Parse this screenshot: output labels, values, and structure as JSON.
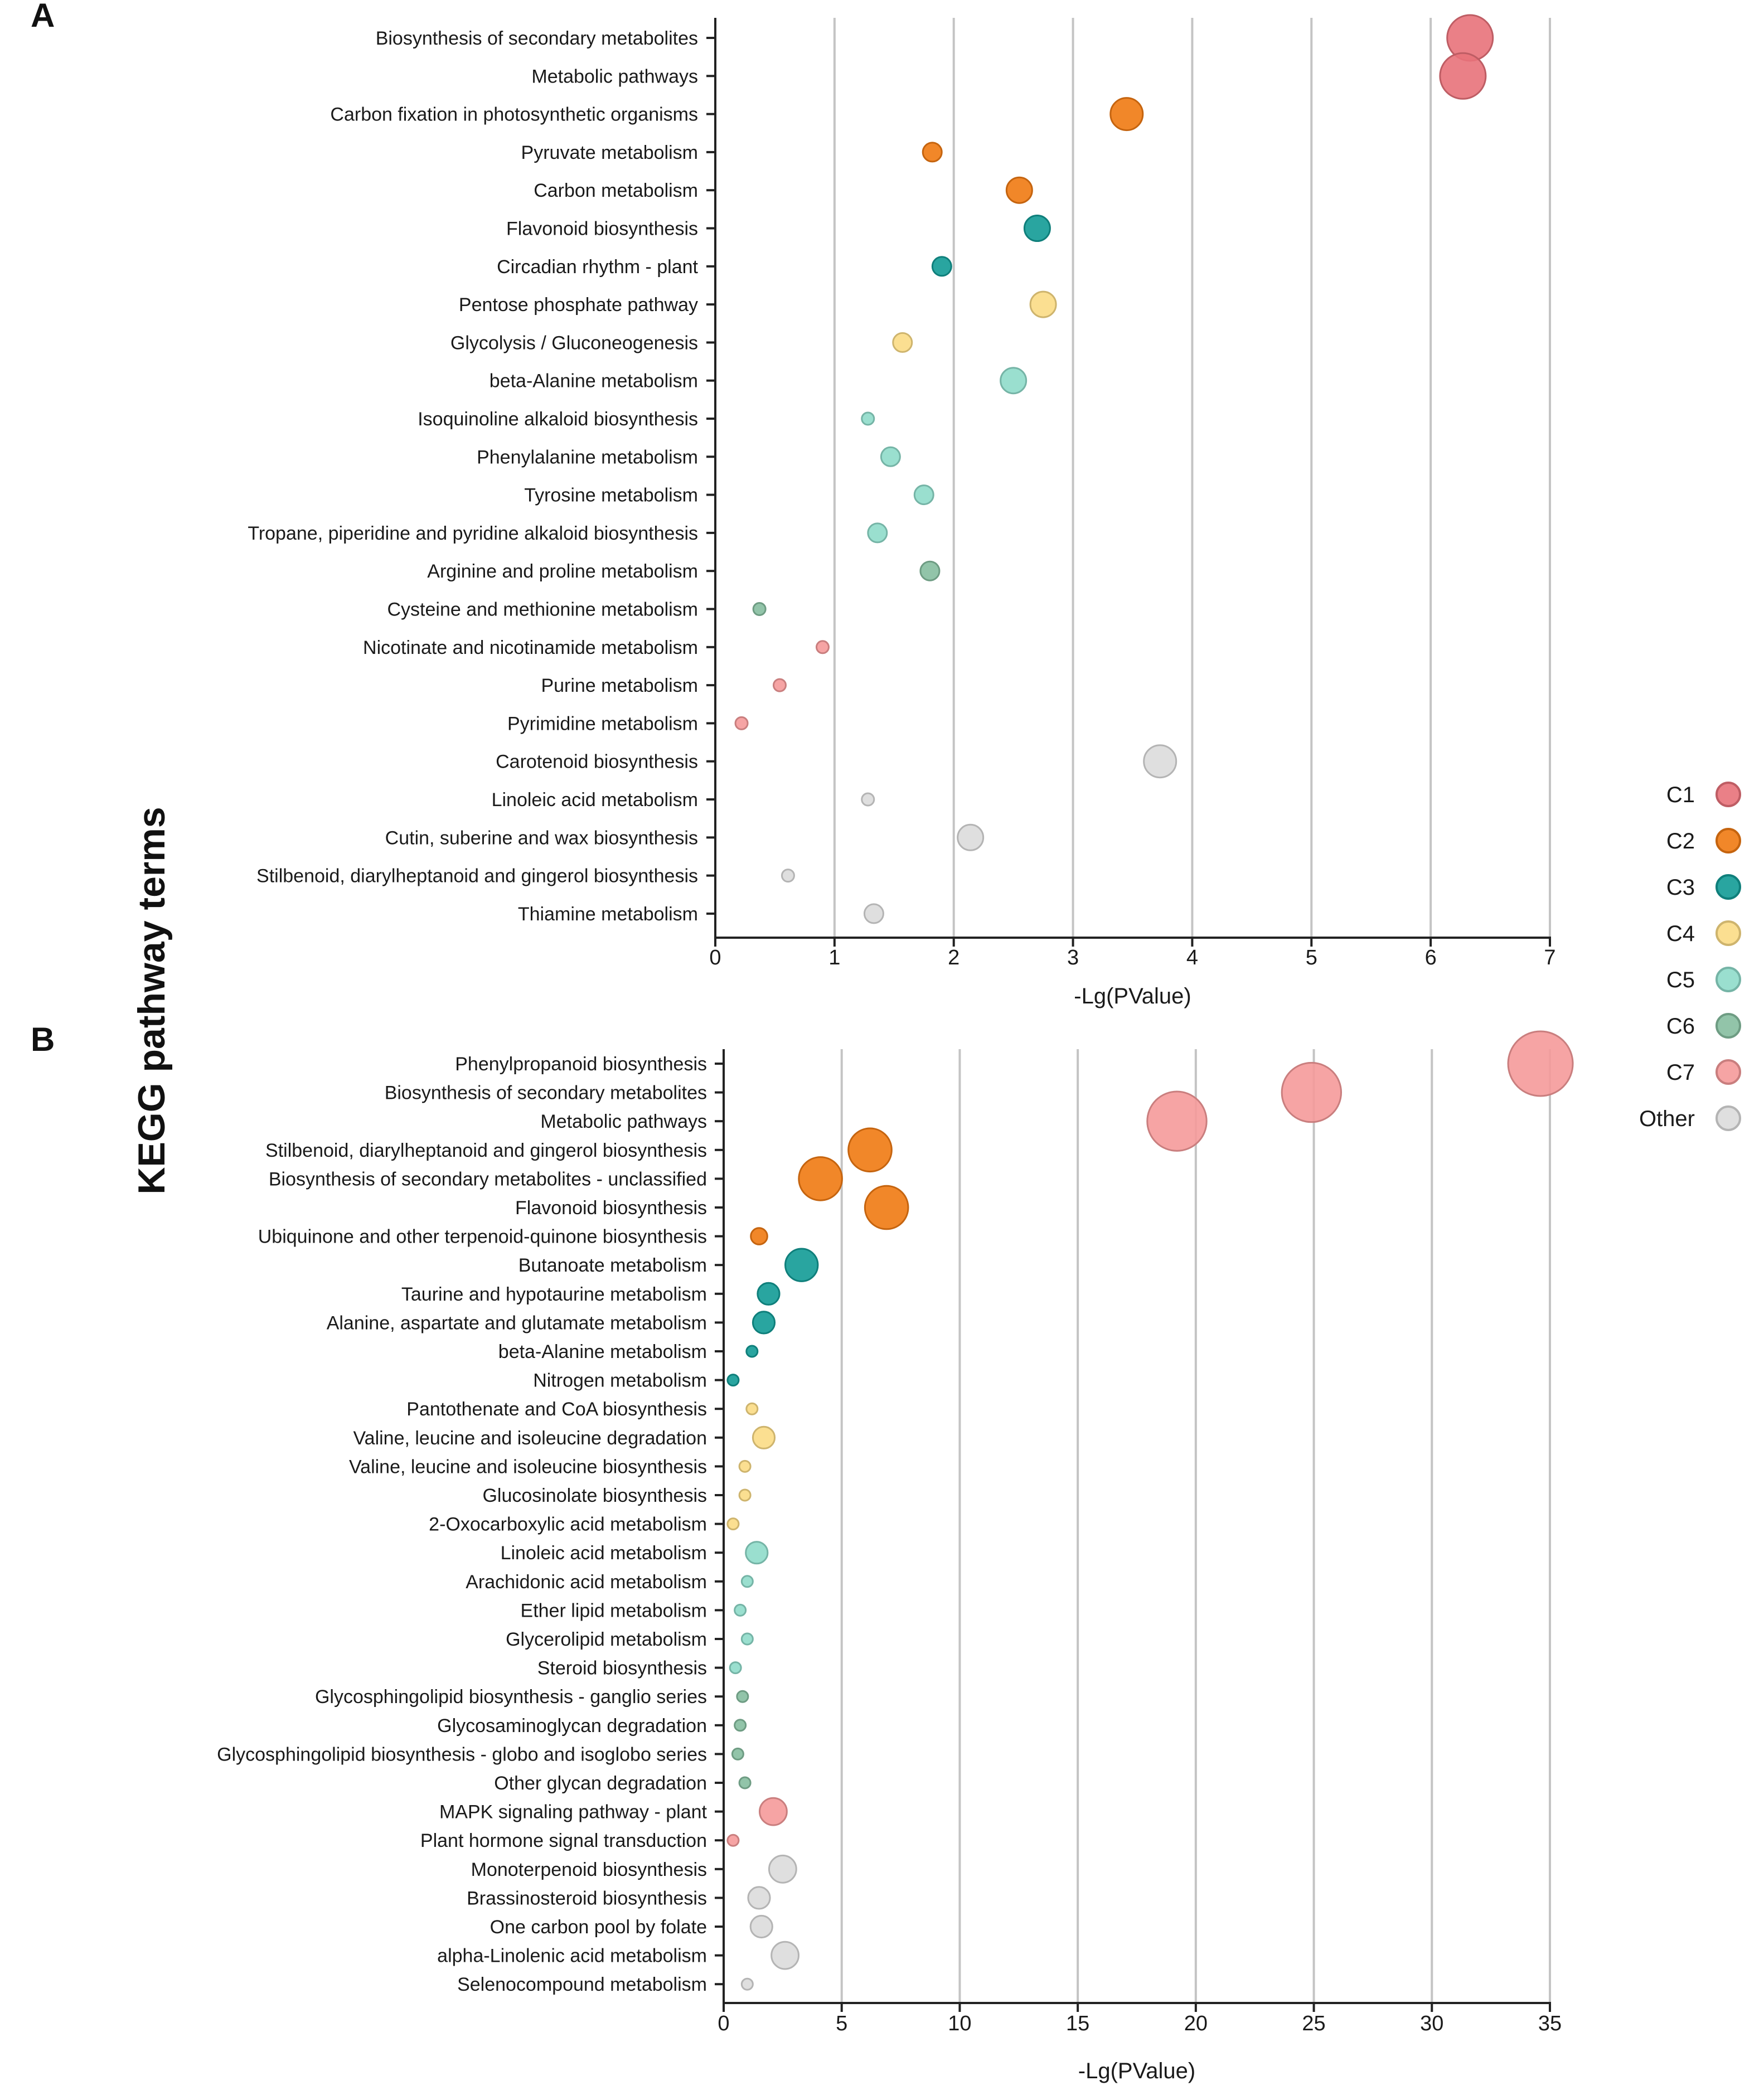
{
  "y_axis_title": "KEGG pathway terms",
  "legend": {
    "entries": [
      {
        "key": "C1",
        "label": "C1",
        "color": "#e8727a"
      },
      {
        "key": "C2",
        "label": "C2",
        "color": "#f07a12"
      },
      {
        "key": "C3",
        "label": "C3",
        "color": "#129b96"
      },
      {
        "key": "C4",
        "label": "C4",
        "color": "#fbdc85"
      },
      {
        "key": "C5",
        "label": "C5",
        "color": "#8fdcca"
      },
      {
        "key": "C6",
        "label": "C6",
        "color": "#86bea0"
      },
      {
        "key": "C7",
        "label": "C7",
        "color": "#f59a9a"
      },
      {
        "key": "Other",
        "label": "Other",
        "color": "#dcdcdc"
      }
    ]
  },
  "chart_data": [
    {
      "panel_label": "A",
      "type": "scatter",
      "xlabel": "-Lg(PValue)",
      "xlim": [
        0,
        7
      ],
      "xticks": [
        "0",
        "1",
        "2",
        "3",
        "4",
        "5",
        "6",
        "7"
      ],
      "grid": true,
      "points": [
        {
          "term": "Biosynthesis of secondary metabolites",
          "x": 6.33,
          "group": "C1",
          "size": 6
        },
        {
          "term": "Metabolic pathways",
          "x": 6.27,
          "group": "C1",
          "size": 6
        },
        {
          "term": "Carbon fixation in photosynthetic organisms",
          "x": 3.45,
          "group": "C2",
          "size": 4
        },
        {
          "term": "Pyruvate metabolism",
          "x": 1.82,
          "group": "C2",
          "size": 2
        },
        {
          "term": "Carbon metabolism",
          "x": 2.55,
          "group": "C2",
          "size": 3
        },
        {
          "term": "Flavonoid biosynthesis",
          "x": 2.7,
          "group": "C3",
          "size": 3
        },
        {
          "term": "Circadian rhythm - plant",
          "x": 1.9,
          "group": "C3",
          "size": 2
        },
        {
          "term": "Pentose phosphate pathway",
          "x": 2.75,
          "group": "C4",
          "size": 3
        },
        {
          "term": "Glycolysis / Gluconeogenesis",
          "x": 1.57,
          "group": "C4",
          "size": 2
        },
        {
          "term": "beta-Alanine metabolism",
          "x": 2.5,
          "group": "C5",
          "size": 3
        },
        {
          "term": "Isoquinoline alkaloid biosynthesis",
          "x": 1.28,
          "group": "C5",
          "size": 1
        },
        {
          "term": "Phenylalanine metabolism",
          "x": 1.47,
          "group": "C5",
          "size": 2
        },
        {
          "term": "Tyrosine metabolism",
          "x": 1.75,
          "group": "C5",
          "size": 2
        },
        {
          "term": "Tropane, piperidine and pyridine alkaloid biosynthesis",
          "x": 1.36,
          "group": "C5",
          "size": 2
        },
        {
          "term": "Arginine and proline metabolism",
          "x": 1.8,
          "group": "C6",
          "size": 2
        },
        {
          "term": "Cysteine and methionine metabolism",
          "x": 0.37,
          "group": "C6",
          "size": 1
        },
        {
          "term": "Nicotinate and nicotinamide metabolism",
          "x": 0.9,
          "group": "C7",
          "size": 1
        },
        {
          "term": "Purine metabolism",
          "x": 0.54,
          "group": "C7",
          "size": 1
        },
        {
          "term": "Pyrimidine metabolism",
          "x": 0.22,
          "group": "C7",
          "size": 1
        },
        {
          "term": "Carotenoid biosynthesis",
          "x": 3.73,
          "group": "Other",
          "size": 4
        },
        {
          "term": "Linoleic acid metabolism",
          "x": 1.28,
          "group": "Other",
          "size": 1
        },
        {
          "term": "Cutin, suberine and wax biosynthesis",
          "x": 2.14,
          "group": "Other",
          "size": 3
        },
        {
          "term": "Stilbenoid, diarylheptanoid and gingerol biosynthesis",
          "x": 0.61,
          "group": "Other",
          "size": 1
        },
        {
          "term": "Thiamine metabolism",
          "x": 1.33,
          "group": "Other",
          "size": 2
        }
      ]
    },
    {
      "panel_label": "B",
      "type": "scatter",
      "xlabel": "-Lg(PValue)",
      "xlim": [
        0,
        35
      ],
      "xticks": [
        "0",
        "5",
        "10",
        "15",
        "20",
        "25",
        "30",
        "35"
      ],
      "grid": true,
      "points": [
        {
          "term": "Phenylpropanoid biosynthesis",
          "x": 34.6,
          "group": "C7",
          "size": 11
        },
        {
          "term": "Biosynthesis of secondary metabolites",
          "x": 24.9,
          "group": "C7",
          "size": 10
        },
        {
          "term": "Metabolic pathways",
          "x": 19.2,
          "group": "C7",
          "size": 10
        },
        {
          "term": "Stilbenoid, diarylheptanoid and gingerol biosynthesis",
          "x": 6.2,
          "group": "C2",
          "size": 7
        },
        {
          "term": "Biosynthesis of secondary metabolites - unclassified",
          "x": 4.1,
          "group": "C2",
          "size": 7
        },
        {
          "term": "Flavonoid biosynthesis",
          "x": 6.9,
          "group": "C2",
          "size": 7
        },
        {
          "term": "Ubiquinone and other terpenoid-quinone biosynthesis",
          "x": 1.5,
          "group": "C2",
          "size": 2
        },
        {
          "term": "Butanoate metabolism",
          "x": 3.3,
          "group": "C3",
          "size": 5
        },
        {
          "term": "Taurine and hypotaurine metabolism",
          "x": 1.9,
          "group": "C3",
          "size": 3
        },
        {
          "term": "Alanine, aspartate and glutamate metabolism",
          "x": 1.7,
          "group": "C3",
          "size": 3
        },
        {
          "term": "beta-Alanine metabolism",
          "x": 1.2,
          "group": "C3",
          "size": 1
        },
        {
          "term": "Nitrogen metabolism",
          "x": 0.4,
          "group": "C3",
          "size": 1
        },
        {
          "term": "Pantothenate and CoA biosynthesis",
          "x": 1.2,
          "group": "C4",
          "size": 1
        },
        {
          "term": "Valine, leucine and isoleucine degradation",
          "x": 1.7,
          "group": "C4",
          "size": 3
        },
        {
          "term": "Valine, leucine and isoleucine biosynthesis",
          "x": 0.9,
          "group": "C4",
          "size": 1
        },
        {
          "term": "Glucosinolate biosynthesis",
          "x": 0.9,
          "group": "C4",
          "size": 1
        },
        {
          "term": "2-Oxocarboxylic acid metabolism",
          "x": 0.4,
          "group": "C4",
          "size": 1
        },
        {
          "term": "Linoleic acid metabolism",
          "x": 1.4,
          "group": "C5",
          "size": 3
        },
        {
          "term": "Arachidonic acid metabolism",
          "x": 1.0,
          "group": "C5",
          "size": 1
        },
        {
          "term": "Ether lipid metabolism",
          "x": 0.7,
          "group": "C5",
          "size": 1
        },
        {
          "term": "Glycerolipid metabolism",
          "x": 1.0,
          "group": "C5",
          "size": 1
        },
        {
          "term": "Steroid biosynthesis",
          "x": 0.5,
          "group": "C5",
          "size": 1
        },
        {
          "term": "Glycosphingolipid biosynthesis - ganglio series",
          "x": 0.8,
          "group": "C6",
          "size": 1
        },
        {
          "term": "Glycosaminoglycan degradation",
          "x": 0.7,
          "group": "C6",
          "size": 1
        },
        {
          "term": "Glycosphingolipid biosynthesis - globo and isoglobo series",
          "x": 0.6,
          "group": "C6",
          "size": 1
        },
        {
          "term": "Other glycan degradation",
          "x": 0.9,
          "group": "C6",
          "size": 1
        },
        {
          "term": "MAPK signaling pathway - plant",
          "x": 2.1,
          "group": "C7",
          "size": 4
        },
        {
          "term": "Plant hormone signal transduction",
          "x": 0.4,
          "group": "C7",
          "size": 1
        },
        {
          "term": "Monoterpenoid biosynthesis",
          "x": 2.5,
          "group": "Other",
          "size": 4
        },
        {
          "term": "Brassinosteroid biosynthesis",
          "x": 1.5,
          "group": "Other",
          "size": 3
        },
        {
          "term": "One carbon pool by folate",
          "x": 1.6,
          "group": "Other",
          "size": 3
        },
        {
          "term": "alpha-Linolenic acid metabolism",
          "x": 2.6,
          "group": "Other",
          "size": 4
        },
        {
          "term": "Selenocompound metabolism",
          "x": 1.0,
          "group": "Other",
          "size": 1
        }
      ]
    }
  ]
}
